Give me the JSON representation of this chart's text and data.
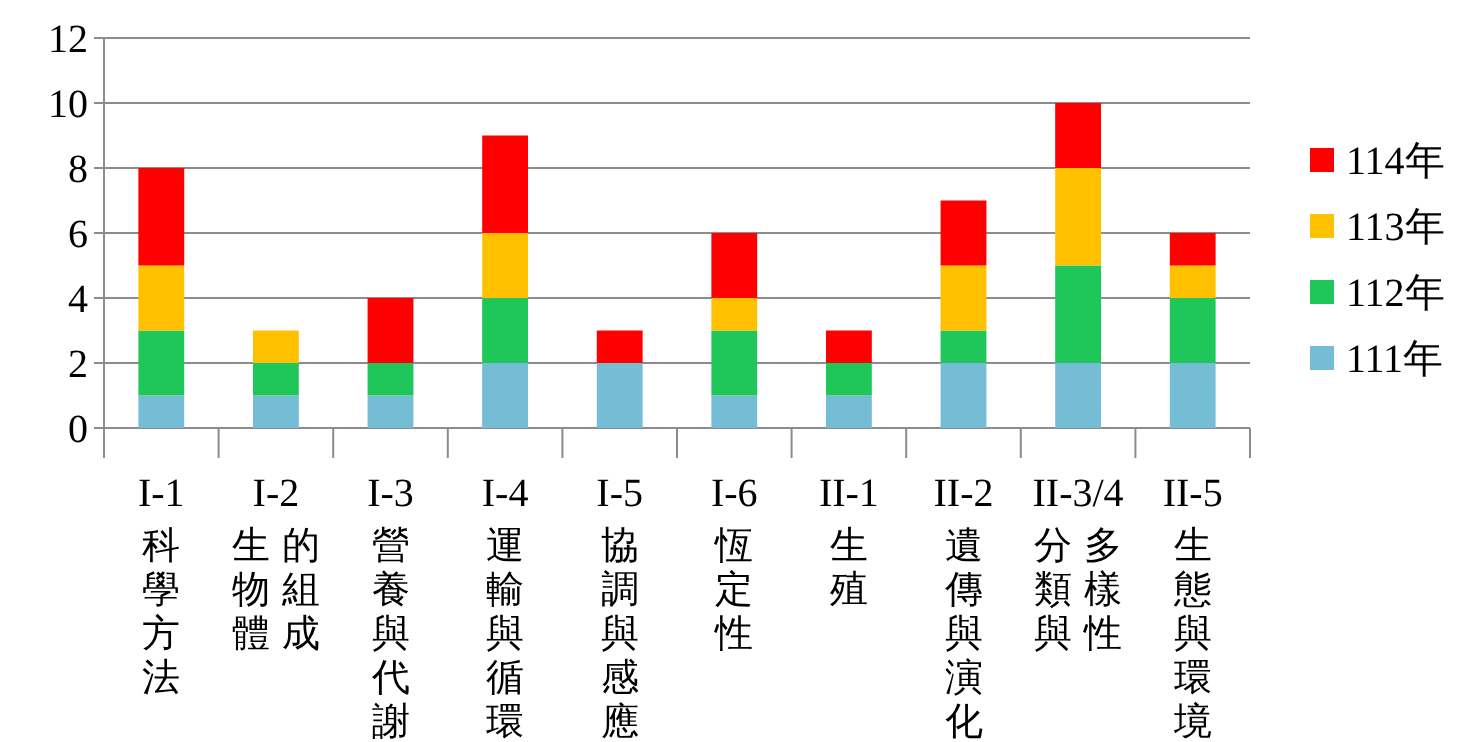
{
  "chart_data": {
    "type": "bar",
    "stacked": true,
    "categories": [
      "I-1\n科學方法",
      "I-2\n生物體的組成",
      "I-3\n營養與代謝",
      "I-4\n運輸與循環",
      "I-5\n協調與感應",
      "I-6\n恆定性",
      "II-1\n生殖",
      "II-2\n遺傳與演化",
      "II-3/4\n分類與多樣性",
      "II-5\n生態與環境"
    ],
    "series": [
      {
        "name": "111年",
        "color": "#75bdd5",
        "values": [
          1,
          1,
          1,
          2,
          2,
          1,
          1,
          2,
          2,
          2
        ]
      },
      {
        "name": "112年",
        "color": "#1fc75a",
        "values": [
          2,
          1,
          1,
          2,
          0,
          2,
          1,
          1,
          3,
          2
        ]
      },
      {
        "name": "113年",
        "color": "#ffc000",
        "values": [
          2,
          1,
          0,
          2,
          0,
          1,
          0,
          2,
          3,
          1
        ]
      },
      {
        "name": "114年",
        "color": "#ff0000",
        "values": [
          3,
          0,
          2,
          3,
          1,
          2,
          1,
          2,
          2,
          1
        ]
      }
    ],
    "ylim": [
      0,
      12
    ],
    "yticks": [
      0,
      2,
      4,
      6,
      8,
      10,
      12
    ],
    "grid": "y",
    "legend": "right"
  }
}
